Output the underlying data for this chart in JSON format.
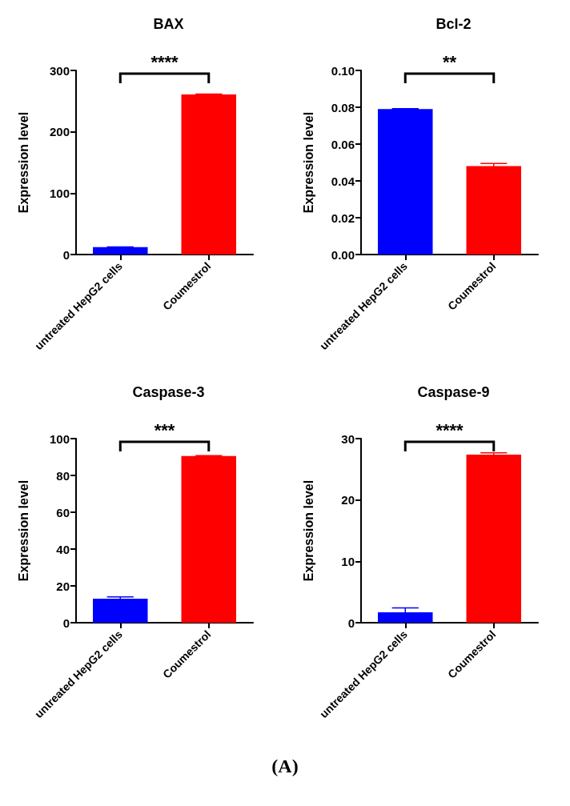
{
  "chart_data": [
    {
      "type": "bar",
      "title": "BAX",
      "ylabel": "Expression level",
      "categories": [
        "untreated HepG2 cells",
        "Coumestrol"
      ],
      "values": [
        12,
        261
      ],
      "colors": [
        "#0000ff",
        "#ff0000"
      ],
      "errors": [
        0.5,
        0.5
      ],
      "ylim": [
        0,
        300
      ],
      "yticks": [
        0,
        100,
        200,
        300
      ],
      "grid": false,
      "annotations": [
        "****"
      ]
    },
    {
      "type": "bar",
      "title": "Bcl-2",
      "ylabel": "Expression level",
      "categories": [
        "untreated HepG2 cells",
        "Coumestrol"
      ],
      "values": [
        0.079,
        0.048
      ],
      "colors": [
        "#0000ff",
        "#ff0000"
      ],
      "errors": [
        0.0002,
        0.0015
      ],
      "ylim": [
        0,
        0.1
      ],
      "yticks": [
        {
          "value": 0,
          "label": "0.00"
        },
        {
          "value": 0.02,
          "label": "0.02"
        },
        {
          "value": 0.04,
          "label": "0.04"
        },
        {
          "value": 0.06,
          "label": "0.06"
        },
        {
          "value": 0.08,
          "label": "0.08"
        },
        {
          "value": 0.1,
          "label": "0.10"
        }
      ],
      "grid": false,
      "annotations": [
        "**"
      ]
    },
    {
      "type": "bar",
      "title": "Caspase-3",
      "ylabel": "Expression level",
      "categories": [
        "untreated HepG2 cells",
        "Coumestrol"
      ],
      "values": [
        13,
        90.5
      ],
      "colors": [
        "#0000ff",
        "#ff0000"
      ],
      "errors": [
        1,
        0.3
      ],
      "ylim": [
        0,
        100
      ],
      "yticks": [
        0,
        20,
        40,
        60,
        80,
        100
      ],
      "grid": false,
      "annotations": [
        "***"
      ]
    },
    {
      "type": "bar",
      "title": "Caspase-9",
      "ylabel": "Expression level",
      "categories": [
        "untreated HepG2 cells",
        "Coumestrol"
      ],
      "values": [
        1.7,
        27.4
      ],
      "colors": [
        "#0000ff",
        "#ff0000"
      ],
      "errors": [
        0.7,
        0.3
      ],
      "ylim": [
        0,
        30
      ],
      "yticks": [
        0,
        10,
        20,
        30
      ],
      "grid": false,
      "annotations": [
        "****",
        "(A)"
      ]
    }
  ]
}
